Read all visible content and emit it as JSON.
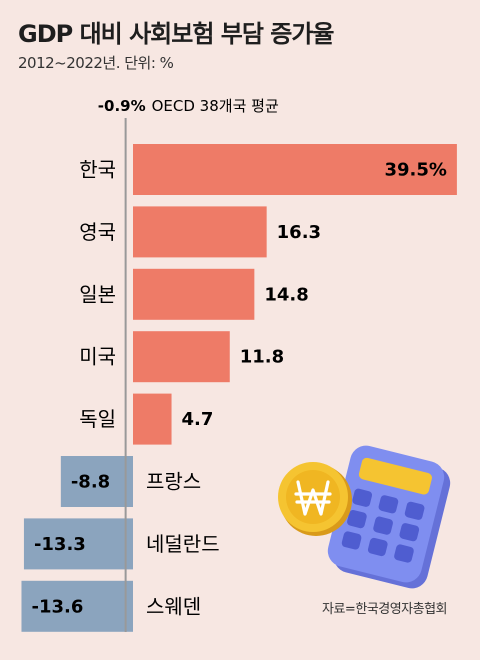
{
  "title": "GDP 대비 사회보험 부담 증가율",
  "subtitle": "2012~2022년. 단위: %",
  "source": "자료=한국경영자총협회",
  "colors": {
    "positive": "#ee7b67",
    "negative": "#8ba4be",
    "reference_line": "#999999",
    "background": "#f7e7e2",
    "calculator_body": "#7f8ef0",
    "coin": "#f5c431"
  },
  "illustration": {
    "calculator": "calculator-icon",
    "coin": "won-coin-icon"
  },
  "chart_data": {
    "type": "bar",
    "orientation": "horizontal",
    "categories": [
      "한국",
      "영국",
      "일본",
      "미국",
      "독일",
      "프랑스",
      "네덜란드",
      "스웨덴"
    ],
    "value_labels": [
      "39.5%",
      "16.3",
      "14.8",
      "11.8",
      "4.7",
      "-8.8",
      "-13.3",
      "-13.6"
    ],
    "values": [
      39.5,
      16.3,
      14.8,
      11.8,
      4.7,
      -8.8,
      -13.3,
      -13.6
    ],
    "reference": {
      "value": -0.9,
      "value_label": "-0.9%",
      "label": "OECD 38개국 평균"
    },
    "xlim": [
      -14.5,
      40
    ],
    "grid": false,
    "legend": "none"
  }
}
